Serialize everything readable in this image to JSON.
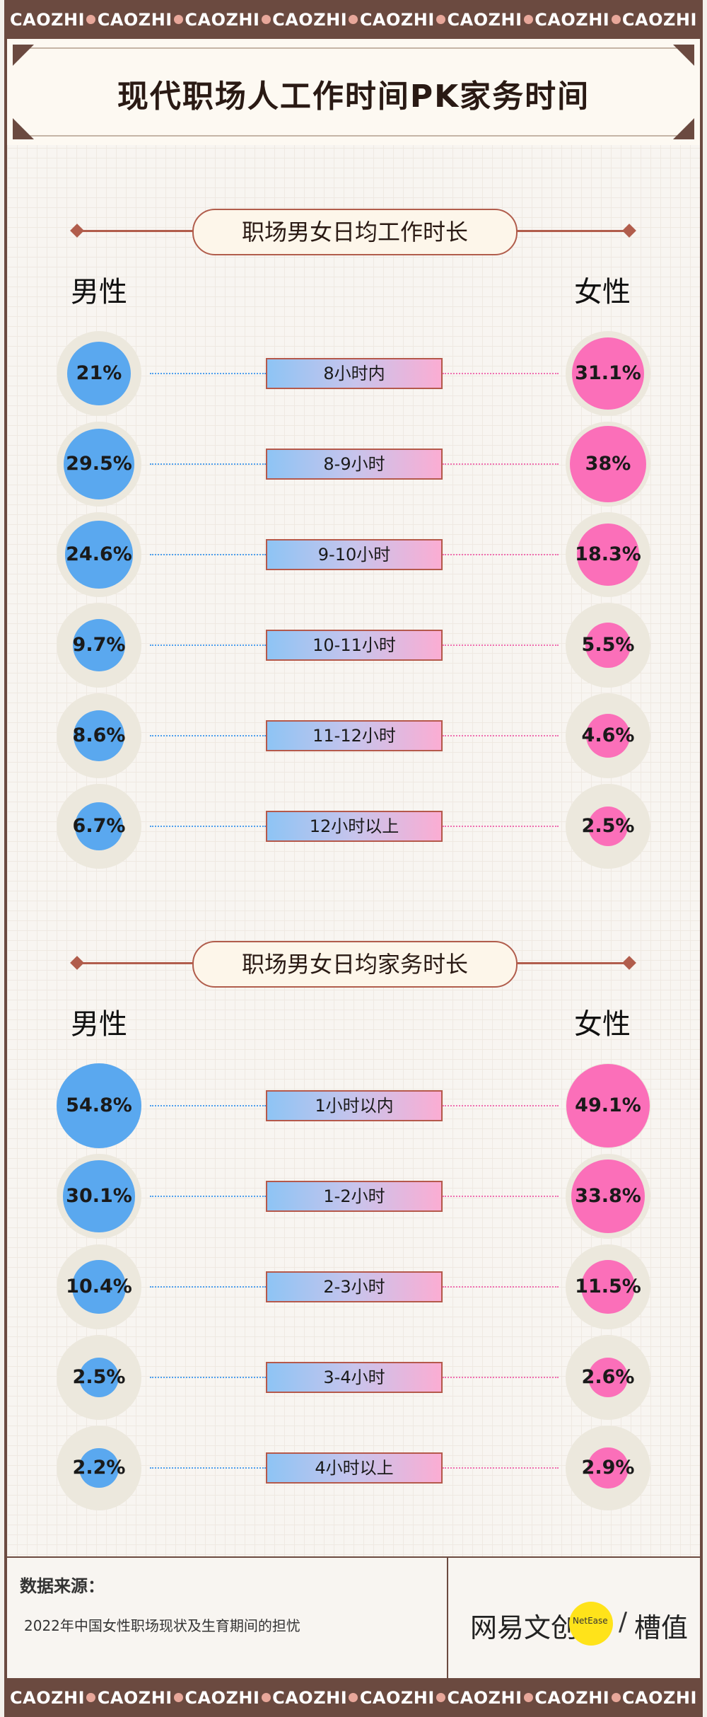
{
  "ribbon_word": "CAOZHI",
  "title": "现代职场人工作时间PK家务时间",
  "sections": [
    {
      "heading": "职场男女日均工作时长",
      "male_label": "男性",
      "female_label": "女性",
      "rows": [
        {
          "label": "8小时内",
          "male": "21%",
          "female": "31.1%",
          "male_v": 21,
          "female_v": 31.1
        },
        {
          "label": "8-9小时",
          "male": "29.5%",
          "female": "38%",
          "male_v": 29.5,
          "female_v": 38
        },
        {
          "label": "9-10小时",
          "male": "24.6%",
          "female": "18.3%",
          "male_v": 24.6,
          "female_v": 18.3
        },
        {
          "label": "10-11小时",
          "male": "9.7%",
          "female": "5.5%",
          "male_v": 9.7,
          "female_v": 5.5
        },
        {
          "label": "11-12小时",
          "male": "8.6%",
          "female": "4.6%",
          "male_v": 8.6,
          "female_v": 4.6
        },
        {
          "label": "12小时以上",
          "male": "6.7%",
          "female": "2.5%",
          "male_v": 6.7,
          "female_v": 2.5
        }
      ]
    },
    {
      "heading": "职场男女日均家务时长",
      "male_label": "男性",
      "female_label": "女性",
      "rows": [
        {
          "label": "1小时以内",
          "male": "54.8%",
          "female": "49.1%",
          "male_v": 54.8,
          "female_v": 49.1
        },
        {
          "label": "1-2小时",
          "male": "30.1%",
          "female": "33.8%",
          "male_v": 30.1,
          "female_v": 33.8
        },
        {
          "label": "2-3小时",
          "male": "10.4%",
          "female": "11.5%",
          "male_v": 10.4,
          "female_v": 11.5
        },
        {
          "label": "3-4小时",
          "male": "2.5%",
          "female": "2.6%",
          "male_v": 2.5,
          "female_v": 2.6
        },
        {
          "label": "4小时以上",
          "male": "2.2%",
          "female": "2.9%",
          "male_v": 2.2,
          "female_v": 2.9
        }
      ]
    }
  ],
  "footer": {
    "source_title": "数据来源：",
    "source_text": "2022年中国女性职场现状及生育期间的担忧",
    "logo_left": "网易文创",
    "logo_badge": "NetEase",
    "logo_right": "槽值"
  },
  "colors": {
    "male": "#5aa8ef",
    "female": "#fb6fb9",
    "accent": "#b15d4c",
    "frame": "#6b4a40"
  }
}
